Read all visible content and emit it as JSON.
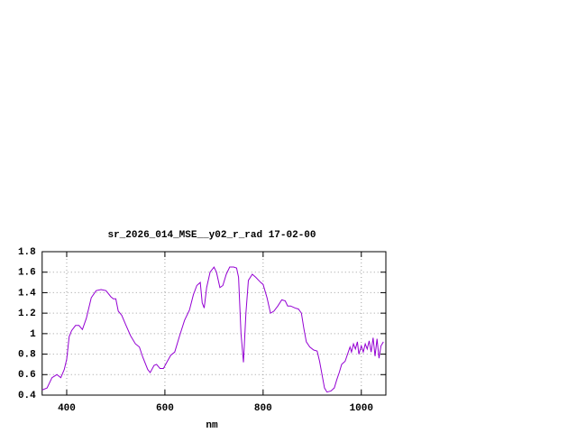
{
  "chart_data": {
    "type": "line",
    "title": "sr_2026_014_MSE__y02_r_rad 17-02-00",
    "x_label": "nm",
    "x": [
      350,
      360,
      370,
      380,
      388,
      395,
      400,
      405,
      410,
      418,
      425,
      432,
      440,
      450,
      460,
      470,
      480,
      490,
      495,
      500,
      505,
      512,
      520,
      530,
      540,
      548,
      555,
      565,
      570,
      578,
      583,
      590,
      597,
      605,
      612,
      620,
      630,
      640,
      650,
      658,
      665,
      672,
      676,
      680,
      685,
      692,
      700,
      705,
      712,
      718,
      725,
      732,
      740,
      746,
      750,
      755,
      760,
      765,
      770,
      778,
      785,
      795,
      800,
      808,
      815,
      822,
      830,
      838,
      845,
      850,
      856,
      865,
      872,
      878,
      883,
      888,
      895,
      903,
      910,
      915,
      920,
      925,
      930,
      938,
      945,
      950,
      955,
      960,
      967,
      972,
      977,
      980,
      984,
      988,
      992,
      995,
      1000,
      1004,
      1008,
      1012,
      1016,
      1020,
      1024,
      1028,
      1032,
      1036,
      1040,
      1045
    ],
    "values": [
      0.45,
      0.47,
      0.57,
      0.6,
      0.57,
      0.65,
      0.75,
      0.97,
      1.03,
      1.08,
      1.08,
      1.04,
      1.15,
      1.35,
      1.42,
      1.43,
      1.42,
      1.36,
      1.34,
      1.34,
      1.22,
      1.18,
      1.09,
      0.98,
      0.9,
      0.87,
      0.77,
      0.65,
      0.62,
      0.69,
      0.7,
      0.66,
      0.66,
      0.73,
      0.79,
      0.82,
      0.98,
      1.13,
      1.23,
      1.38,
      1.47,
      1.5,
      1.3,
      1.25,
      1.45,
      1.6,
      1.65,
      1.6,
      1.45,
      1.47,
      1.58,
      1.65,
      1.65,
      1.64,
      1.55,
      1.0,
      0.72,
      1.2,
      1.52,
      1.58,
      1.55,
      1.5,
      1.48,
      1.35,
      1.2,
      1.22,
      1.27,
      1.33,
      1.32,
      1.27,
      1.27,
      1.25,
      1.24,
      1.2,
      1.05,
      0.92,
      0.87,
      0.84,
      0.83,
      0.73,
      0.6,
      0.47,
      0.43,
      0.44,
      0.47,
      0.55,
      0.62,
      0.7,
      0.73,
      0.8,
      0.87,
      0.82,
      0.9,
      0.85,
      0.92,
      0.8,
      0.88,
      0.82,
      0.9,
      0.85,
      0.93,
      0.82,
      0.96,
      0.78,
      0.95,
      0.76,
      0.88,
      0.92
    ],
    "color": "#9400d3",
    "xlim": [
      350,
      1050
    ],
    "xticks": [
      400,
      600,
      800,
      1000
    ],
    "ylim": [
      0.4,
      1.8
    ],
    "yticks": [
      0.4,
      0.6,
      0.8,
      1,
      1.2,
      1.4,
      1.6,
      1.8
    ],
    "grid": true
  }
}
